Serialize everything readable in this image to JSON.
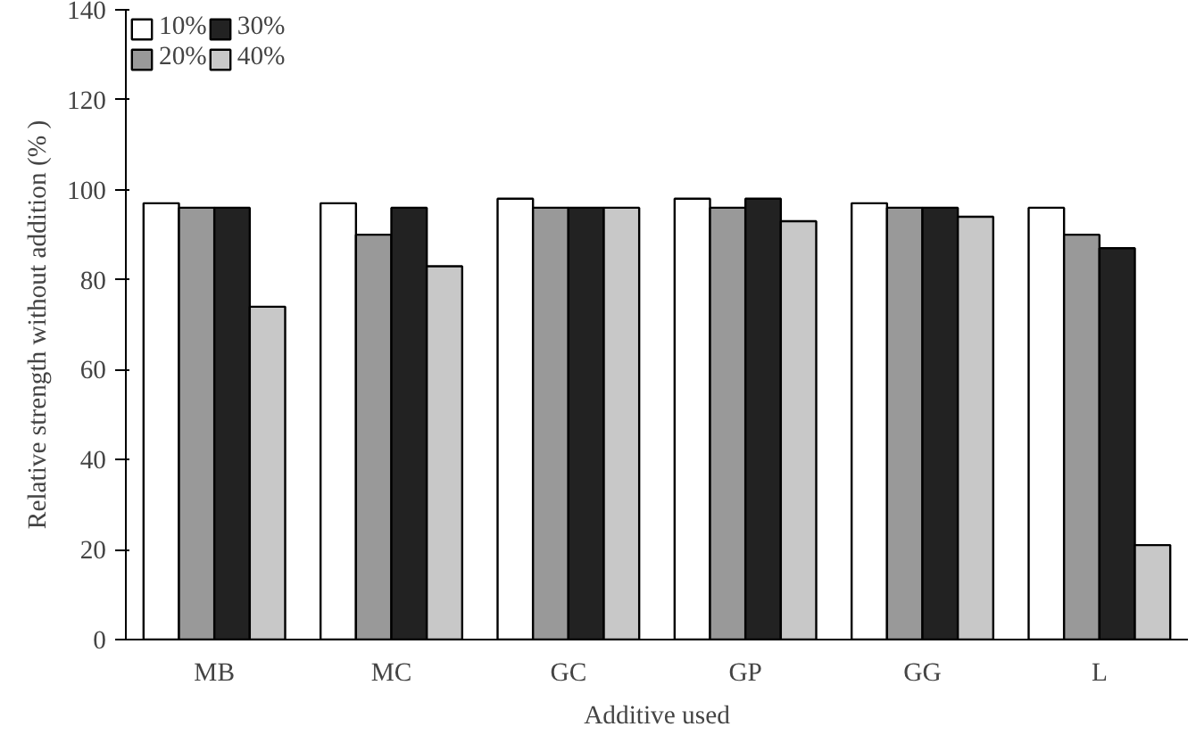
{
  "chart_data": {
    "type": "bar",
    "xlabel": "Additive used",
    "ylabel": "Relative strength without addition (% )",
    "categories": [
      "MB",
      "MC",
      "GC",
      "GP",
      "GG",
      "L"
    ],
    "series": [
      {
        "name": "10%",
        "color": "#ffffff",
        "values": [
          97,
          97,
          98,
          98,
          97,
          96
        ]
      },
      {
        "name": "20%",
        "color": "#999999",
        "values": [
          96,
          90,
          96,
          96,
          96,
          90
        ]
      },
      {
        "name": "30%",
        "color": "#222222",
        "values": [
          96,
          96,
          96,
          98,
          96,
          87
        ]
      },
      {
        "name": "40%",
        "color": "#c8c8c8",
        "values": [
          74,
          83,
          96,
          93,
          94,
          21
        ]
      }
    ],
    "ylim": [
      0,
      140
    ],
    "yticks": [
      0,
      20,
      40,
      60,
      80,
      100,
      120,
      140
    ],
    "grid": false,
    "legend": "top left"
  }
}
